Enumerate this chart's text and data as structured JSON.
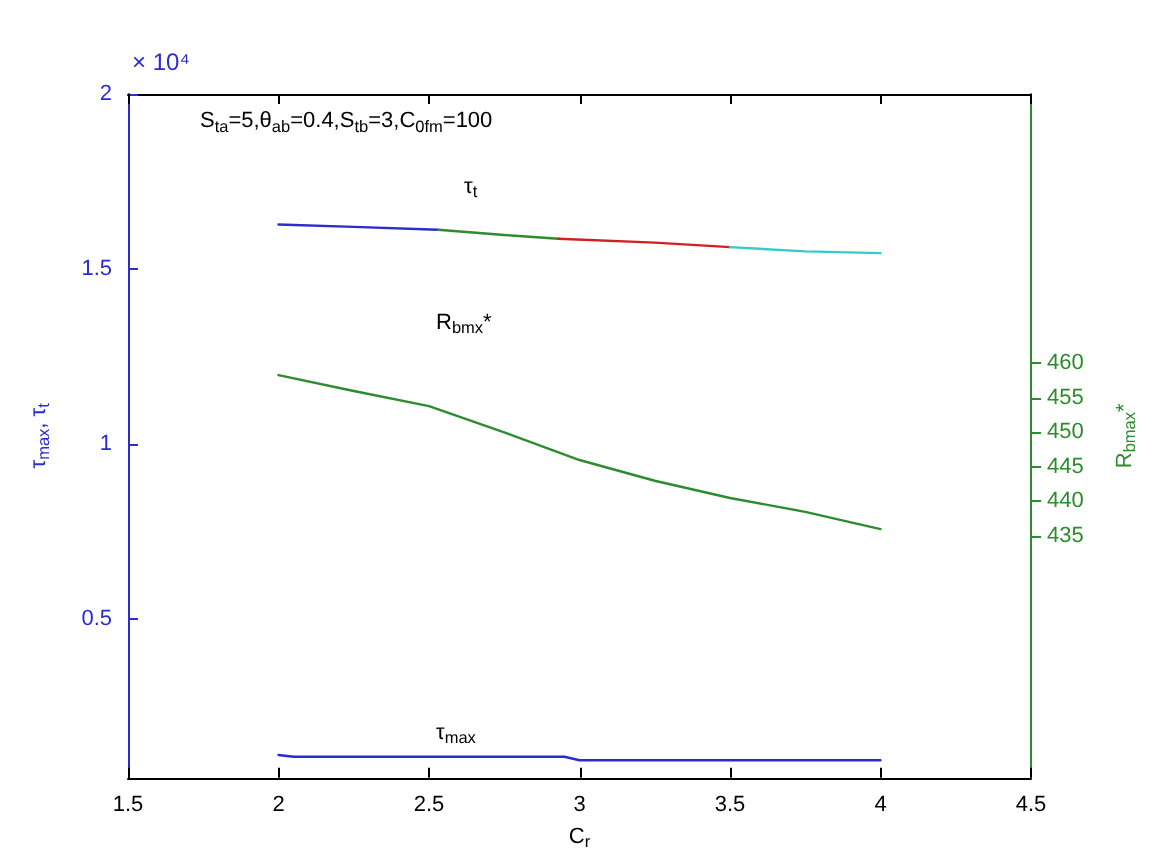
{
  "chart_data": {
    "type": "line",
    "annotations": [
      "× 10⁴",
      "S$_{ta}$=5,θ$_{ab}$=0.4,S$_{tb}$=3,C$_{0fm}$=100",
      "τ$_{t}$",
      "R$_{bmx}$*",
      "τ$_{max}$"
    ],
    "xlabel": "C$_{r}$",
    "ylabel": "τ$_{max}$, τ$_{t}$",
    "y2label": "R$_{bmax}$*",
    "xlim": [
      1.5,
      4.5
    ],
    "xticks": [
      1.5,
      2,
      2.5,
      3,
      3.5,
      4,
      4.5
    ],
    "ylim": [
      0.045,
      2
    ],
    "yticks": [
      0.5,
      1,
      1.5,
      2
    ],
    "y2lim": [
      400,
      499
    ],
    "y2ticks": [
      435,
      440,
      445,
      450,
      455,
      460
    ],
    "grid": false,
    "marker": "none",
    "line_style": "solid",
    "series": [
      {
        "color": "#2b2bd0",
        "x": [
          2,
          2.25,
          2.53
        ],
        "values": [
          1.627,
          1.62,
          1.612
        ]
      },
      {
        "color": "#2e8b2e",
        "x": [
          2.53,
          2.75,
          2.93
        ],
        "values": [
          1.612,
          1.597,
          1.586
        ]
      },
      {
        "color": "#d02020",
        "x": [
          2.93,
          3.25,
          3.5
        ],
        "values": [
          1.586,
          1.575,
          1.562
        ]
      },
      {
        "color": "#33cccc",
        "x": [
          3.5,
          3.75,
          4
        ],
        "values": [
          1.562,
          1.55,
          1.545
        ]
      },
      {
        "color": "#2e8b2e",
        "axis": "y2",
        "x": [
          2,
          2.25,
          2.5,
          2.75,
          3,
          3.25,
          3.5,
          3.75,
          4
        ],
        "values": [
          458.3,
          456,
          453.8,
          450,
          446,
          443,
          440.5,
          438.5,
          436
        ]
      },
      {
        "color": "#2b2bd0",
        "x": [
          2,
          2.05,
          2.95,
          3,
          4
        ],
        "values": [
          0.11,
          0.105,
          0.105,
          0.095,
          0.095
        ]
      }
    ]
  }
}
